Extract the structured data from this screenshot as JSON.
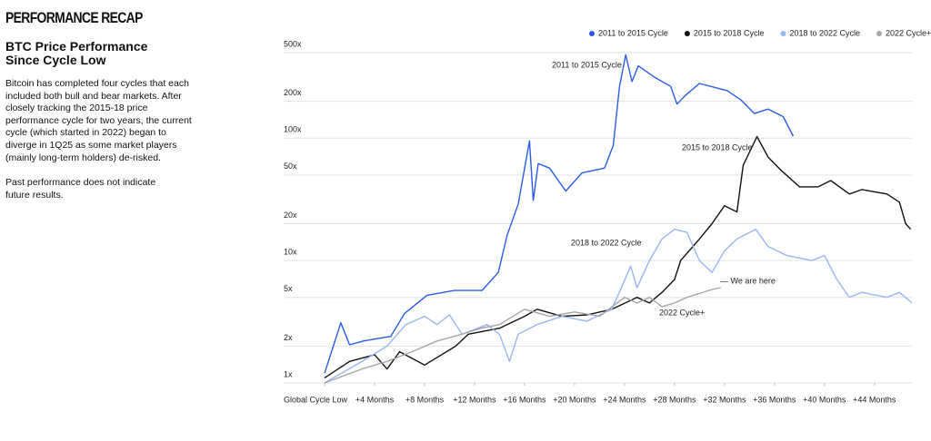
{
  "page": {
    "section": "PERFORMANCE RECAP",
    "description": "Bitcoin has completed four cycles that each included both bull and bear markets. After closely tracking the 2015-18 price performance cycle for two years, the current cycle (which started in 2022) began to diverge in 1Q25 as some market players (mainly long-term holders) de-risked.",
    "disclaimer": "Past performance does not indicate future results."
  },
  "chart_data": {
    "type": "line",
    "title": "BTC Price Performance Since Cycle Low",
    "log_y": true,
    "grid": true,
    "legend": "top-right",
    "xlim": [
      0,
      47
    ],
    "ylim": [
      1,
      500
    ],
    "xticks": [
      {
        "value": 0,
        "label": "Global Cycle Low"
      },
      {
        "value": 4,
        "label": "+4 Months"
      },
      {
        "value": 8,
        "label": "+8 Months"
      },
      {
        "value": 12,
        "label": "+12 Months"
      },
      {
        "value": 16,
        "label": "+16 Months"
      },
      {
        "value": 20,
        "label": "+20 Months"
      },
      {
        "value": 24,
        "label": "+24 Months"
      },
      {
        "value": 28,
        "label": "+28 Months"
      },
      {
        "value": 32,
        "label": "+32 Months"
      },
      {
        "value": 36,
        "label": "+36 Months"
      },
      {
        "value": 40,
        "label": "+40 Months"
      },
      {
        "value": 44,
        "label": "+44 Months"
      }
    ],
    "yticks": [
      {
        "value": 1,
        "label": "1x"
      },
      {
        "value": 2,
        "label": "2x"
      },
      {
        "value": 5,
        "label": "5x"
      },
      {
        "value": 10,
        "label": "10x"
      },
      {
        "value": 20,
        "label": "20x"
      },
      {
        "value": 50,
        "label": "50x"
      },
      {
        "value": 100,
        "label": "100x"
      },
      {
        "value": 200,
        "label": "200x"
      },
      {
        "value": 500,
        "label": "500x"
      }
    ],
    "annotations": [
      "2011 to 2015 Cycle",
      "2015 to 2018 Cycle",
      "2018 to 2022 Cycle",
      "— We are here",
      "2022 Cycle+"
    ],
    "series": [
      {
        "name": "2011 to 2015 Cycle",
        "color": "#2a5ce6",
        "x": [
          0,
          1.3,
          2.0,
          3.1,
          5.3,
          6.4,
          8.2,
          10.4,
          12.6,
          13.9,
          14.6,
          15.5,
          16.4,
          16.7,
          17.1,
          18.0,
          19.3,
          20.6,
          22.4,
          23.1,
          23.6,
          24.1,
          24.6,
          25.1,
          26.4,
          27.7,
          28.2,
          28.9,
          30.0,
          32.2,
          33.3,
          34.4,
          35.5,
          36.7,
          37.5
        ],
        "values": [
          1.2,
          3.1,
          2.05,
          2.2,
          2.4,
          3.7,
          5.2,
          5.7,
          5.7,
          8,
          16,
          29,
          95,
          31,
          62,
          57,
          37,
          52,
          57,
          87,
          265,
          480,
          290,
          390,
          315,
          265,
          190,
          225,
          280,
          245,
          206,
          159,
          173,
          150,
          104
        ]
      },
      {
        "name": "2015 to 2018 Cycle",
        "color": "#111111",
        "x": [
          0,
          2,
          4,
          5,
          6,
          8,
          10.5,
          11.5,
          14,
          16,
          17,
          19,
          21,
          23,
          25,
          26,
          27,
          28,
          28.5,
          30,
          31,
          32,
          33,
          33.5,
          34.6,
          35.5,
          36.5,
          38,
          39.5,
          40.5,
          42,
          43,
          45,
          46,
          46.5,
          46.9
        ],
        "values": [
          1.1,
          1.5,
          1.7,
          1.3,
          1.8,
          1.4,
          2,
          2.5,
          2.8,
          3.5,
          4,
          3.5,
          3.6,
          4,
          5,
          4.5,
          5.5,
          7,
          10,
          15,
          20,
          28,
          25,
          60,
          103,
          70,
          55,
          40,
          40,
          45,
          35,
          38,
          35,
          30,
          20,
          18
        ]
      },
      {
        "name": "2018 to 2022 Cycle",
        "color": "#9bb5f5",
        "x": [
          0,
          3,
          5,
          6.5,
          8,
          9,
          10,
          11,
          13,
          14,
          14.8,
          15.5,
          17,
          19,
          21,
          23,
          24.5,
          25,
          26,
          27,
          28,
          29,
          30,
          31,
          32,
          33,
          34.5,
          35.5,
          37,
          39,
          40,
          41,
          42,
          43,
          45,
          46,
          47
        ],
        "values": [
          1,
          1.5,
          2,
          3,
          3.5,
          3,
          3.6,
          2.5,
          3,
          2.5,
          1.5,
          2.5,
          3,
          3.5,
          3.2,
          4,
          9,
          6,
          10,
          15,
          18,
          17,
          10,
          8,
          12,
          15,
          18,
          13,
          11,
          10,
          11,
          7,
          5,
          5.5,
          5,
          5.5,
          4.5
        ]
      },
      {
        "name": "2022 Cycle+",
        "color": "#a6a6a6",
        "x": [
          0,
          3,
          5,
          7,
          9,
          11,
          12.5,
          14,
          16,
          18,
          20,
          22,
          24,
          25,
          26,
          27,
          28,
          29,
          31,
          31.7
        ],
        "values": [
          1,
          1.3,
          1.5,
          1.8,
          2.2,
          2.5,
          2.8,
          3,
          4,
          3.5,
          3.8,
          3.5,
          5,
          4.5,
          5,
          4.2,
          4.5,
          5,
          5.8,
          6
        ]
      }
    ]
  }
}
